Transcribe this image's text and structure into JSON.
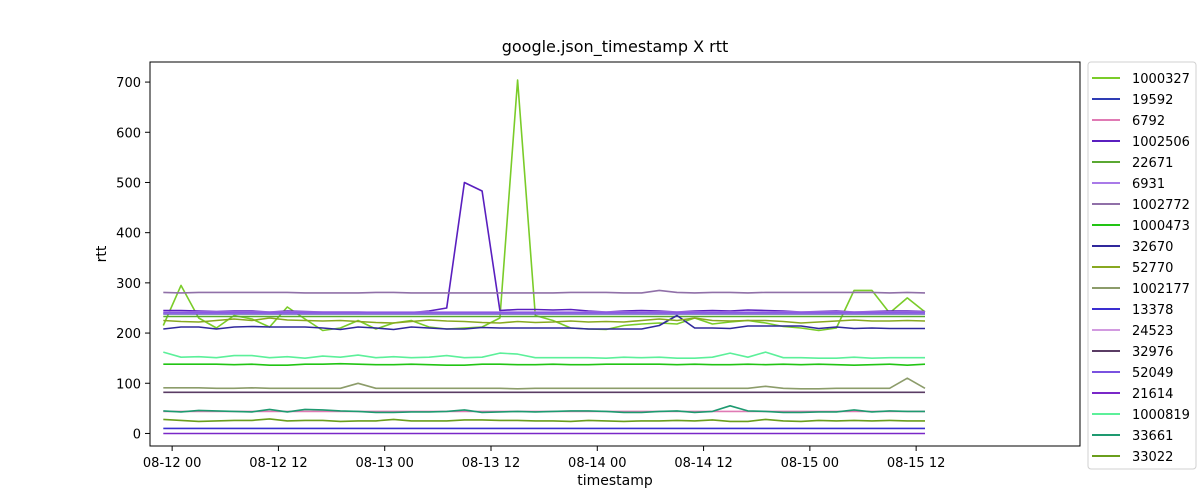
{
  "chart_data": {
    "type": "line",
    "title": "google.json_timestamp X rtt",
    "xlabel": "timestamp",
    "ylabel": "rtt",
    "x_start": "2021-08-11T23:00",
    "x_step_hours": 2,
    "xlim": [
      "2021-08-11T21:30",
      "2021-08-16T06:30"
    ],
    "ylim": [
      -25,
      740
    ],
    "x_ticks": [
      {
        "label": "08-12 00",
        "at": "2021-08-12T00:00"
      },
      {
        "label": "08-12 12",
        "at": "2021-08-12T12:00"
      },
      {
        "label": "08-13 00",
        "at": "2021-08-13T00:00"
      },
      {
        "label": "08-13 12",
        "at": "2021-08-13T12:00"
      },
      {
        "label": "08-14 00",
        "at": "2021-08-14T00:00"
      },
      {
        "label": "08-14 12",
        "at": "2021-08-14T12:00"
      },
      {
        "label": "08-15 00",
        "at": "2021-08-15T00:00"
      },
      {
        "label": "08-15 12",
        "at": "2021-08-15T12:00"
      }
    ],
    "y_ticks": [
      0,
      100,
      200,
      300,
      400,
      500,
      600,
      700
    ],
    "grid": false,
    "legend_position": "outside-right",
    "series": [
      {
        "name": "1000327",
        "color": "#7acc29",
        "values": [
          215,
          295,
          230,
          210,
          235,
          228,
          212,
          252,
          228,
          205,
          210,
          225,
          208,
          220,
          225,
          212,
          208,
          210,
          212,
          230,
          704,
          235,
          225,
          210,
          208,
          207,
          215,
          218,
          220,
          218,
          230,
          218,
          222,
          225,
          220,
          213,
          210,
          205,
          210,
          285,
          285,
          240,
          270,
          242
        ]
      },
      {
        "name": "19592",
        "color": "#2e3cb4",
        "values": [
          238,
          238,
          238,
          238,
          238,
          238,
          238,
          238,
          238,
          238,
          238,
          238,
          238,
          238,
          238,
          238,
          238,
          238,
          238,
          238,
          238,
          238,
          238,
          238,
          238,
          238,
          238,
          238,
          238,
          238,
          238,
          238,
          238,
          238,
          238,
          238,
          238,
          238,
          238,
          238,
          238,
          238,
          238,
          238
        ]
      },
      {
        "name": "6792",
        "color": "#e07ab4",
        "values": [
          44,
          44,
          44,
          44,
          44,
          44,
          44,
          44,
          44,
          44,
          44,
          44,
          44,
          44,
          44,
          44,
          44,
          44,
          44,
          44,
          44,
          44,
          44,
          44,
          44,
          44,
          44,
          44,
          44,
          44,
          44,
          44,
          44,
          44,
          44,
          44,
          44,
          44,
          44,
          44,
          44,
          44,
          44,
          44
        ]
      },
      {
        "name": "1002506",
        "color": "#5a1fbf",
        "values": [
          245,
          245,
          244,
          243,
          244,
          244,
          242,
          244,
          243,
          242,
          242,
          242,
          241,
          240,
          241,
          244,
          250,
          500,
          483,
          245,
          247,
          247,
          246,
          247,
          244,
          242,
          244,
          245,
          244,
          242,
          244,
          245,
          244,
          246,
          245,
          244,
          242,
          243,
          244,
          242,
          243,
          244,
          244,
          243
        ]
      },
      {
        "name": "22671",
        "color": "#5aa832",
        "values": [
          233,
          233,
          233,
          233,
          233,
          233,
          233,
          233,
          233,
          233,
          233,
          233,
          233,
          233,
          233,
          233,
          233,
          233,
          233,
          233,
          233,
          233,
          233,
          233,
          233,
          233,
          233,
          233,
          233,
          233,
          233,
          233,
          233,
          233,
          233,
          233,
          233,
          233,
          233,
          233,
          233,
          233,
          233,
          233
        ]
      },
      {
        "name": "6931",
        "color": "#a97ae8",
        "values": [
          242,
          242,
          242,
          242,
          242,
          242,
          242,
          242,
          242,
          242,
          242,
          242,
          242,
          242,
          242,
          242,
          242,
          242,
          242,
          242,
          242,
          242,
          242,
          242,
          242,
          242,
          242,
          242,
          242,
          242,
          242,
          242,
          242,
          242,
          242,
          242,
          242,
          242,
          242,
          242,
          242,
          242,
          242,
          242
        ]
      },
      {
        "name": "1002772",
        "color": "#9070a8",
        "values": [
          281,
          280,
          281,
          281,
          281,
          281,
          281,
          281,
          280,
          280,
          280,
          280,
          281,
          281,
          280,
          280,
          280,
          280,
          280,
          280,
          280,
          280,
          280,
          281,
          281,
          281,
          280,
          280,
          285,
          281,
          280,
          281,
          281,
          280,
          281,
          281,
          281,
          281,
          281,
          281,
          281,
          280,
          281,
          280
        ]
      },
      {
        "name": "1000473",
        "color": "#22c414",
        "values": [
          138,
          138,
          138,
          138,
          137,
          138,
          136,
          136,
          138,
          138,
          139,
          138,
          137,
          137,
          138,
          137,
          136,
          136,
          138,
          138,
          137,
          137,
          138,
          137,
          137,
          138,
          138,
          138,
          138,
          137,
          138,
          137,
          137,
          138,
          137,
          138,
          137,
          138,
          137,
          136,
          137,
          138,
          136,
          138
        ]
      },
      {
        "name": "32670",
        "color": "#30289c",
        "values": [
          208,
          212,
          212,
          208,
          212,
          213,
          212,
          212,
          212,
          210,
          207,
          212,
          210,
          207,
          212,
          210,
          208,
          208,
          211,
          210,
          210,
          210,
          210,
          210,
          208,
          208,
          208,
          208,
          215,
          235,
          210,
          210,
          209,
          214,
          214,
          214,
          214,
          209,
          212,
          209,
          210,
          209,
          209,
          209
        ]
      },
      {
        "name": "52770",
        "color": "#88a820",
        "values": [
          225,
          223,
          222,
          225,
          228,
          225,
          230,
          226,
          225,
          224,
          225,
          223,
          221,
          220,
          223,
          226,
          224,
          223,
          221,
          220,
          223,
          221,
          222,
          224,
          222,
          223,
          222,
          225,
          228,
          225,
          230,
          225,
          224,
          225,
          225,
          223,
          220,
          222,
          224,
          226,
          224,
          224,
          225,
          224
        ]
      },
      {
        "name": "1002177",
        "color": "#8c9c6a",
        "values": [
          91,
          91,
          91,
          90,
          90,
          91,
          90,
          90,
          90,
          90,
          90,
          100,
          90,
          90,
          90,
          90,
          90,
          90,
          90,
          90,
          89,
          90,
          90,
          90,
          90,
          90,
          90,
          90,
          90,
          90,
          90,
          90,
          90,
          90,
          94,
          90,
          89,
          89,
          90,
          90,
          90,
          90,
          110,
          90
        ]
      },
      {
        "name": "13378",
        "color": "#3a2ed0",
        "values": [
          10,
          10,
          10,
          10,
          10,
          10,
          10,
          10,
          10,
          10,
          10,
          10,
          10,
          10,
          10,
          10,
          10,
          10,
          10,
          10,
          10,
          10,
          10,
          10,
          10,
          10,
          10,
          10,
          10,
          10,
          10,
          10,
          10,
          10,
          10,
          10,
          10,
          10,
          10,
          10,
          10,
          10,
          10,
          10
        ]
      },
      {
        "name": "24523",
        "color": "#d29ae0",
        "values": [
          239,
          239,
          239,
          239,
          239,
          239,
          239,
          239,
          239,
          239,
          239,
          239,
          239,
          239,
          239,
          239,
          239,
          239,
          239,
          239,
          239,
          239,
          239,
          239,
          239,
          239,
          239,
          239,
          239,
          239,
          239,
          239,
          239,
          239,
          239,
          239,
          239,
          239,
          239,
          239,
          239,
          239,
          239,
          239
        ]
      },
      {
        "name": "32976",
        "color": "#5a3c64",
        "values": [
          82,
          82,
          82,
          82,
          82,
          82,
          82,
          82,
          82,
          82,
          82,
          82,
          82,
          82,
          82,
          82,
          82,
          82,
          82,
          82,
          82,
          82,
          82,
          82,
          82,
          82,
          82,
          82,
          82,
          82,
          82,
          82,
          82,
          82,
          82,
          82,
          82,
          82,
          82,
          82,
          82,
          82,
          82,
          82
        ]
      },
      {
        "name": "52049",
        "color": "#7a52e0",
        "values": [
          240,
          240,
          240,
          240,
          240,
          240,
          240,
          240,
          240,
          240,
          240,
          240,
          240,
          240,
          240,
          240,
          240,
          240,
          240,
          240,
          240,
          240,
          240,
          240,
          240,
          240,
          240,
          240,
          240,
          240,
          240,
          240,
          240,
          240,
          240,
          240,
          240,
          240,
          240,
          240,
          240,
          240,
          240,
          240
        ]
      },
      {
        "name": "21614",
        "color": "#7a28c8",
        "values": [
          0,
          0,
          0,
          0,
          0,
          0,
          0,
          0,
          0,
          0,
          0,
          0,
          0,
          0,
          0,
          0,
          0,
          0,
          0,
          0,
          0,
          0,
          0,
          0,
          0,
          0,
          0,
          0,
          0,
          0,
          0,
          0,
          0,
          0,
          0,
          0,
          0,
          0,
          0,
          0,
          0,
          0,
          0,
          0
        ]
      },
      {
        "name": "1000819",
        "color": "#5cf09a",
        "values": [
          162,
          152,
          153,
          151,
          155,
          155,
          151,
          153,
          150,
          154,
          152,
          156,
          151,
          153,
          151,
          152,
          155,
          151,
          152,
          160,
          158,
          151,
          151,
          151,
          151,
          150,
          152,
          151,
          152,
          150,
          150,
          152,
          160,
          152,
          162,
          151,
          151,
          150,
          150,
          152,
          150,
          151,
          151,
          151
        ]
      },
      {
        "name": "33661",
        "color": "#1e9a70",
        "values": [
          45,
          43,
          46,
          45,
          44,
          43,
          48,
          43,
          48,
          47,
          45,
          44,
          42,
          42,
          43,
          43,
          44,
          47,
          42,
          43,
          44,
          43,
          44,
          45,
          45,
          44,
          42,
          42,
          44,
          45,
          42,
          44,
          55,
          45,
          44,
          42,
          42,
          43,
          43,
          47,
          43,
          45,
          44,
          44
        ]
      },
      {
        "name": "33022",
        "color": "#6a9e1c",
        "values": [
          28,
          26,
          24,
          25,
          26,
          26,
          29,
          25,
          26,
          26,
          24,
          25,
          25,
          28,
          25,
          25,
          25,
          27,
          27,
          26,
          26,
          25,
          25,
          24,
          26,
          25,
          24,
          25,
          25,
          26,
          25,
          27,
          24,
          24,
          28,
          25,
          24,
          26,
          25,
          26,
          25,
          26,
          25,
          25
        ]
      }
    ]
  }
}
